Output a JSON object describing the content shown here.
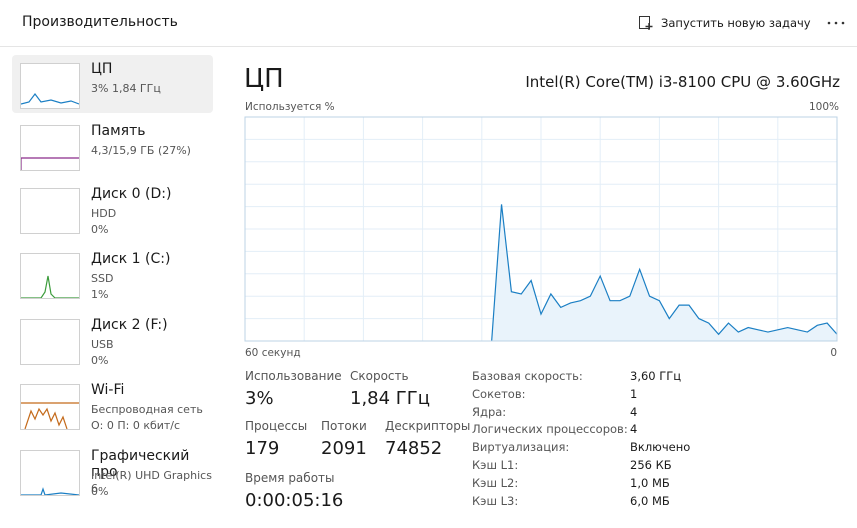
{
  "header": {
    "title": "Производительность",
    "new_task": "Запустить новую задачу"
  },
  "sidebar": [
    {
      "lines": [
        "ЦП",
        "3%  1,84 ГГц"
      ]
    },
    {
      "lines": [
        "Память",
        "4,3/15,9 ГБ (27%)"
      ]
    },
    {
      "lines": [
        "Диск 0 (D:)",
        "HDD",
        "0%"
      ]
    },
    {
      "lines": [
        "Диск 1 (C:)",
        "SSD",
        "1%"
      ]
    },
    {
      "lines": [
        "Диск 2 (F:)",
        "USB",
        "0%"
      ]
    },
    {
      "lines": [
        "Wi-Fi",
        "Беспроводная сеть",
        "О: 0 П: 0 кбит/с"
      ]
    },
    {
      "lines": [
        "Графический про",
        "Intel(R) UHD Graphics 6",
        "0%"
      ]
    }
  ],
  "main": {
    "title": "ЦП",
    "cpu_model": "Intel(R) Core(TM) i3-8100 CPU @ 3.60GHz"
  },
  "chart_data": {
    "type": "line",
    "y_label": "Используется %",
    "x": [
      35,
      34,
      33,
      32,
      31,
      30,
      29,
      28,
      27,
      26,
      25,
      24,
      23,
      22,
      21,
      20,
      19,
      18,
      17,
      16,
      15,
      14,
      13,
      12,
      11,
      10,
      9,
      8,
      7,
      6,
      5,
      4,
      3,
      2,
      1,
      0
    ],
    "values": [
      0,
      61,
      22,
      21,
      27,
      12,
      21,
      15,
      17,
      18,
      20,
      29,
      18,
      18,
      20,
      32,
      20,
      18,
      10,
      16,
      16,
      10,
      8,
      3,
      8,
      4,
      6,
      5,
      4,
      5,
      6,
      5,
      4,
      7,
      8,
      3
    ],
    "color": "#1b7fc4",
    "fill": "#e9f3fb",
    "xlim": [
      60,
      0
    ],
    "xticks": [
      {
        "value": 60,
        "label": "60 секунд"
      },
      0
    ],
    "ylim": [
      0,
      100
    ],
    "yticks": [
      {
        "value": 100,
        "label": "100%"
      }
    ],
    "grid": true
  },
  "stats": [
    {
      "label": "Использование",
      "value": "3%"
    },
    {
      "label": "Скорость",
      "value": "1,84 ГГц"
    },
    {
      "label": "Процессы",
      "value": "179"
    },
    {
      "label": "Потоки",
      "value": "2091"
    },
    {
      "label": "Дескрипторы",
      "value": "74852"
    },
    {
      "label": "Время работы",
      "value": "0:00:05:16"
    }
  ],
  "details": [
    [
      "Базовая скорость:",
      "3,60 ГГц"
    ],
    [
      "Сокетов:",
      "1"
    ],
    [
      "Ядра:",
      "4"
    ],
    [
      "Логических процессоров:",
      "4"
    ],
    [
      "Виртуализация:",
      "Включено"
    ],
    [
      "Кэш L1:",
      "256 КБ"
    ],
    [
      "Кэш L2:",
      "1,0 МБ"
    ],
    [
      "Кэш L3:",
      "6,0 МБ"
    ]
  ]
}
